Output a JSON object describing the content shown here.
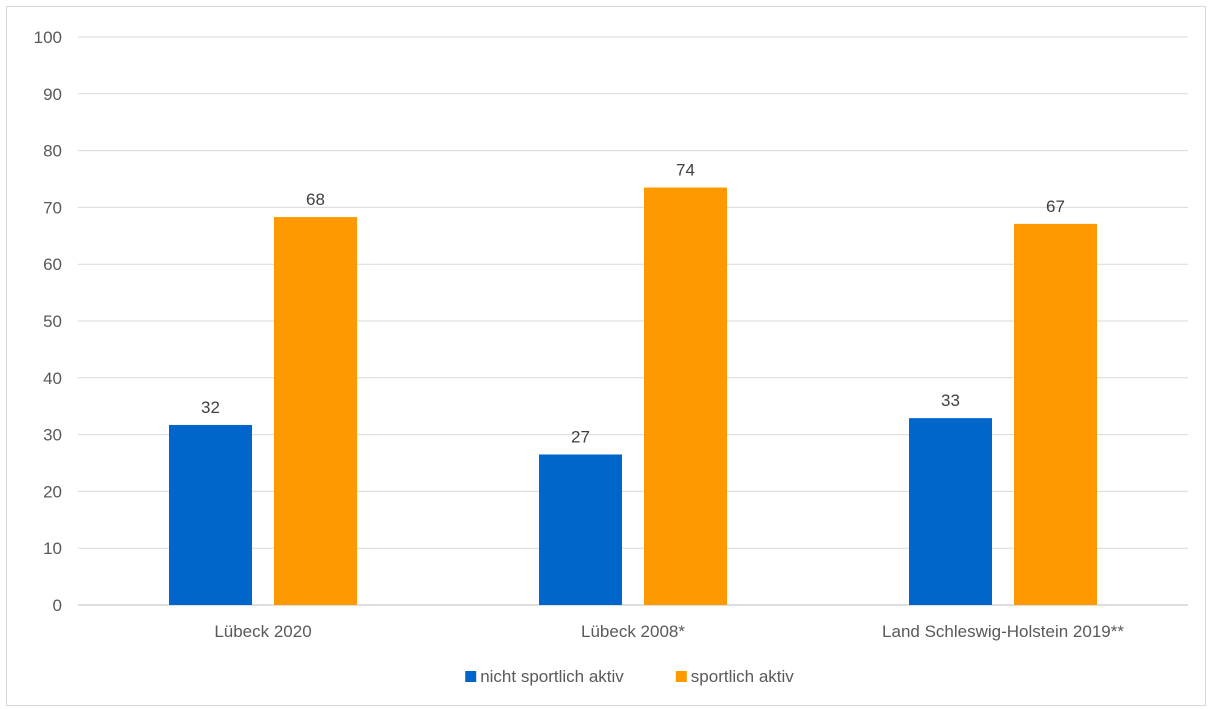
{
  "chart_data": {
    "type": "bar",
    "categories": [
      "Lübeck 2020",
      "Lübeck 2008*",
      "Land Schleswig-Holstein 2019**"
    ],
    "series": [
      {
        "name": "nicht sportlich aktiv",
        "color": "#0066cc",
        "values": [
          31.7,
          26.5,
          32.9
        ],
        "labels": [
          "32",
          "27",
          "33"
        ]
      },
      {
        "name": "sportlich aktiv",
        "color": "#ff9900",
        "values": [
          68.3,
          73.5,
          67.1
        ],
        "labels": [
          "68",
          "74",
          "67"
        ]
      }
    ],
    "ylim": [
      0,
      100
    ],
    "yticks": [
      "0",
      "10",
      "20",
      "30",
      "40",
      "50",
      "60",
      "70",
      "80",
      "90",
      "100"
    ],
    "grid": true,
    "legend": "bottom",
    "gridline_color": "#d9d9d9",
    "axis_color": "#bfbfbf"
  }
}
